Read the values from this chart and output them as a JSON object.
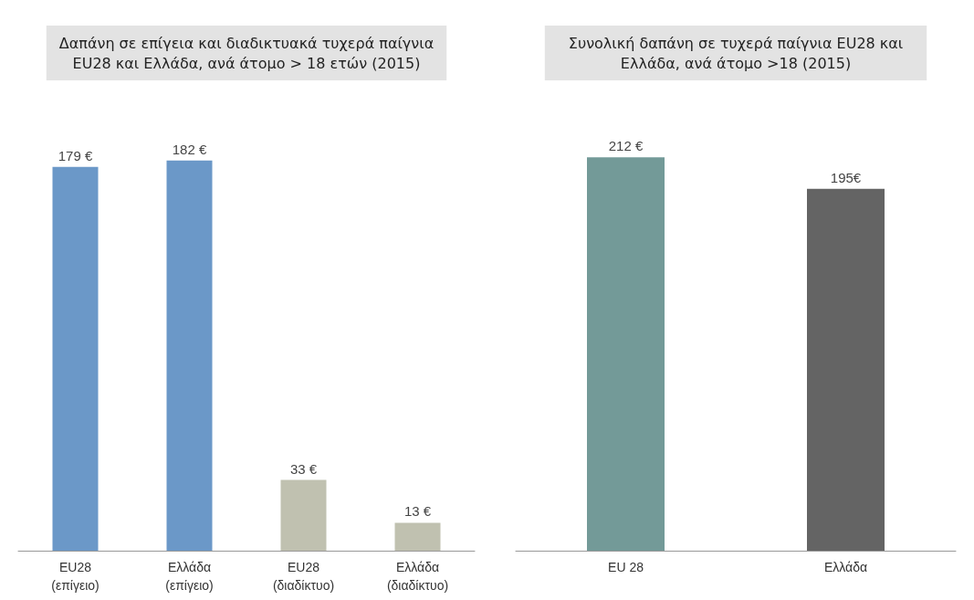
{
  "chart_data": [
    {
      "type": "bar",
      "title": "Δαπάνη σε επίγεια και διαδικτυακά τυχερά παίγνια\nEU28 και Ελλάδα, ανά άτομο > 18 ετών (2015)",
      "categories": [
        "EU28\n(επίγειο)",
        "Ελλάδα\n(επίγειο)",
        "EU28\n(διαδίκτυο)",
        "Ελλάδα\n(διαδίκτυο)"
      ],
      "values": [
        179,
        182,
        33,
        13
      ],
      "colors": [
        "#6b98c8",
        "#6b98c8",
        "#c0c1b0",
        "#c0c1b0"
      ],
      "value_labels": [
        "179 €",
        "182 €",
        "33 €",
        "13 €"
      ]
    },
    {
      "type": "bar",
      "title": "Συνολική δαπάνη σε τυχερά παίγνια EU28 και\nΕλλάδα, ανά άτομο >18 (2015)",
      "categories": [
        "EU 28",
        "Ελλάδα"
      ],
      "values": [
        212,
        195
      ],
      "colors": [
        "#739a98",
        "#646464"
      ],
      "value_labels": [
        "212 €",
        "195€"
      ]
    }
  ]
}
